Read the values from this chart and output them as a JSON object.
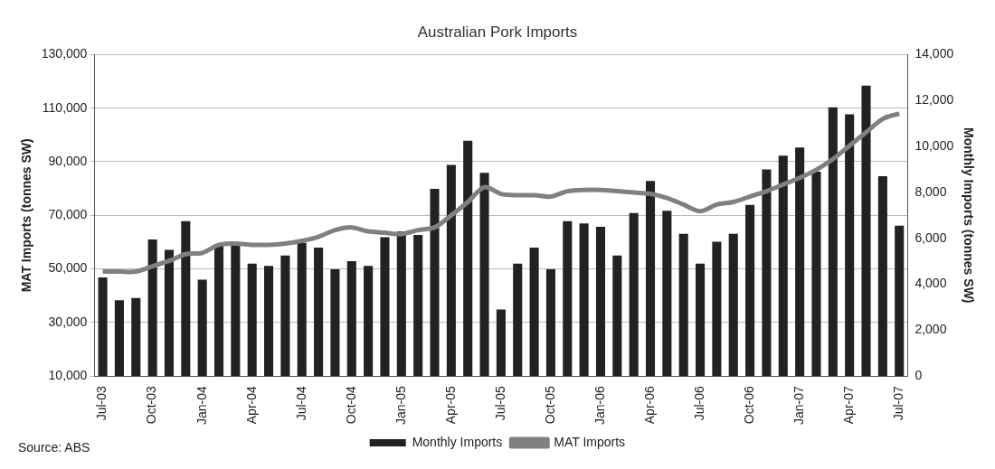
{
  "chart_data": {
    "type": "bar",
    "title": "Australian Pork Imports",
    "ylabel": "MAT Imports (tonnes SW)",
    "y2label": "Monthly Imports (tonnes SW)",
    "categories": [
      "Jul-03",
      null,
      null,
      "Oct-03",
      null,
      null,
      "Jan-04",
      null,
      null,
      "Apr-04",
      null,
      null,
      "Jul-04",
      null,
      null,
      "Oct-04",
      null,
      null,
      "Jan-05",
      null,
      null,
      "Apr-05",
      null,
      null,
      "Jul-05",
      null,
      null,
      "Oct-05",
      null,
      null,
      "Jan-06",
      null,
      null,
      "Apr-06",
      null,
      null,
      "Jul-06",
      null,
      null,
      "Oct-06",
      null,
      null,
      "Jan-07",
      null,
      null,
      "Apr-07",
      null,
      null,
      "Jul-07"
    ],
    "series": [
      {
        "name": "Monthly Imports",
        "axis": "y2",
        "color": "#222222",
        "values": [
          4300,
          3300,
          3400,
          5950,
          5500,
          6750,
          4200,
          5700,
          5800,
          4900,
          4800,
          5250,
          5800,
          5600,
          4650,
          5000,
          4800,
          6050,
          6300,
          6150,
          8150,
          9200,
          10250,
          8850,
          2900,
          4900,
          5600,
          4650,
          6750,
          6650,
          6500,
          5250,
          7100,
          8500,
          7200,
          6200,
          4900,
          5850,
          6200,
          7450,
          9000,
          9600,
          9950,
          8900,
          11700,
          11400,
          12650,
          8700,
          6550
        ]
      },
      {
        "name": "MAT Imports",
        "type": "line",
        "color": "#808080",
        "values": [
          49000,
          49000,
          49000,
          51000,
          53000,
          55500,
          56000,
          59000,
          59500,
          59000,
          59000,
          59500,
          60500,
          62000,
          64500,
          65500,
          64000,
          63500,
          63000,
          64500,
          65500,
          70000,
          75000,
          80500,
          78000,
          77500,
          77500,
          77000,
          79000,
          79500,
          79500,
          79000,
          78500,
          78000,
          76500,
          74000,
          71500,
          74000,
          75000,
          77000,
          79000,
          81500,
          84000,
          87000,
          91000,
          96000,
          101000,
          106000,
          108000
        ]
      }
    ],
    "ylim": [
      10000,
      130000
    ],
    "yticks": [
      {
        "value": 10000,
        "label": "10,000"
      },
      {
        "value": 30000,
        "label": "30,000"
      },
      {
        "value": 50000,
        "label": "50,000"
      },
      {
        "value": 70000,
        "label": "70,000"
      },
      {
        "value": 90000,
        "label": "90,000"
      },
      {
        "value": 110000,
        "label": "110,000"
      },
      {
        "value": 130000,
        "label": "130,000"
      }
    ],
    "y2lim": [
      0,
      14000
    ],
    "y2ticks": [
      0,
      {
        "value": 2000,
        "label": "2,000"
      },
      {
        "value": 4000,
        "label": "4,000"
      },
      {
        "value": 6000,
        "label": "6,000"
      },
      {
        "value": 8000,
        "label": "8,000"
      },
      {
        "value": 10000,
        "label": "10,000"
      },
      {
        "value": 12000,
        "label": "12,000"
      },
      {
        "value": 14000,
        "label": "14,000"
      }
    ],
    "grid": "y",
    "legend": "bottom",
    "line_style": "solid",
    "marker": "none",
    "annotations": [
      "Source: ABS"
    ]
  }
}
